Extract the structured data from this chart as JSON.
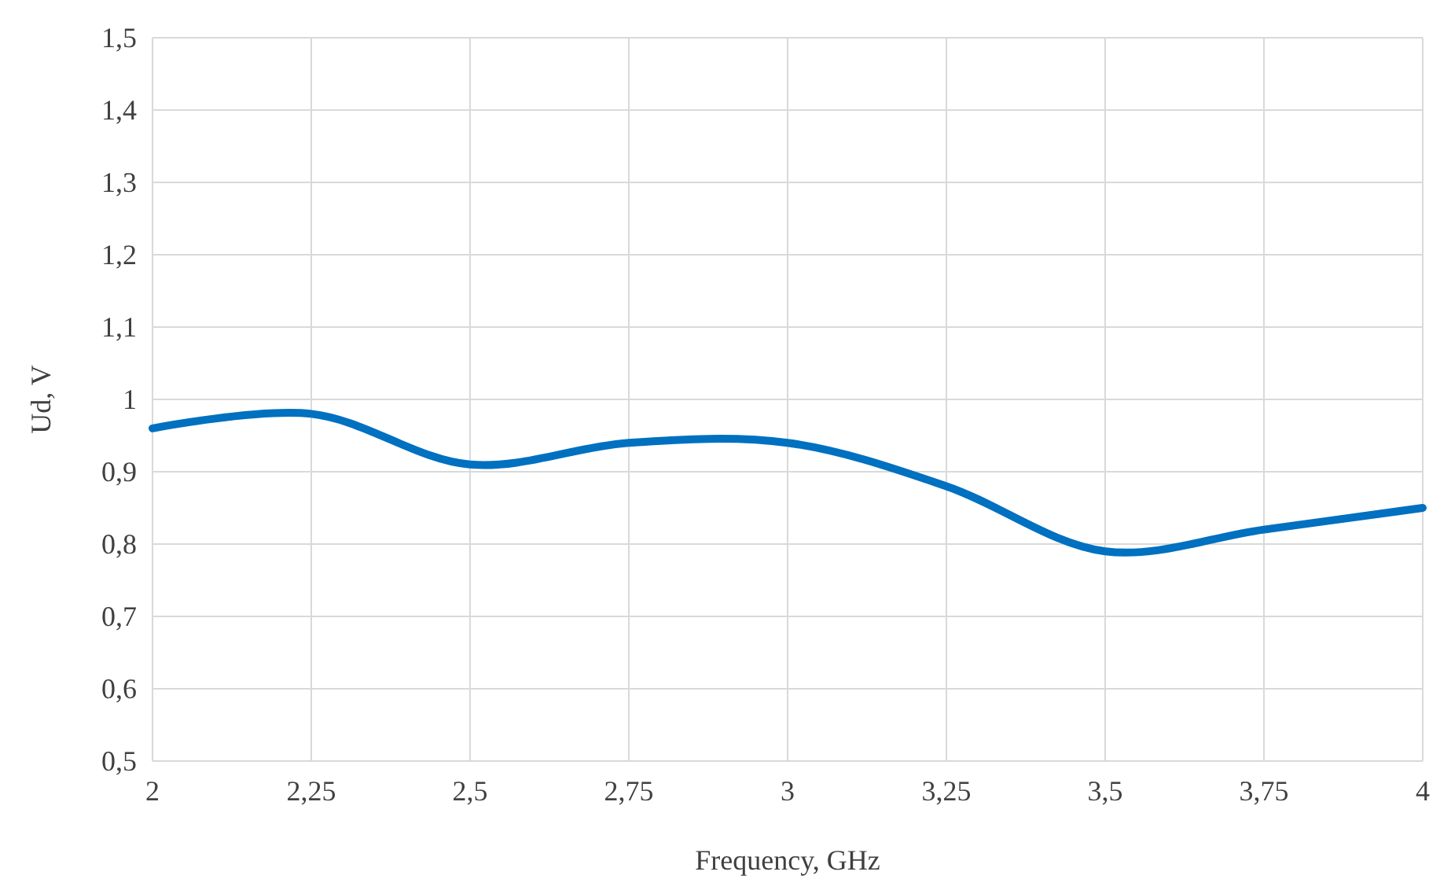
{
  "chart_data": {
    "type": "line",
    "xlabel": "Frequency, GHz",
    "ylabel": "Ud, V",
    "x": [
      2,
      2.25,
      2.5,
      2.75,
      3,
      3.25,
      3.5,
      3.75,
      4
    ],
    "series": [
      {
        "color": "#0070c0",
        "values": [
          0.96,
          0.98,
          0.91,
          0.94,
          0.94,
          0.88,
          0.79,
          0.82,
          0.85
        ]
      }
    ],
    "xlim": [
      2,
      4
    ],
    "xticks": [
      2,
      {
        "value": 2.25,
        "label": "2,25"
      },
      {
        "value": 2.5,
        "label": "2,5"
      },
      {
        "value": 2.75,
        "label": "2,75"
      },
      3,
      {
        "value": 3.25,
        "label": "3,25"
      },
      {
        "value": 3.5,
        "label": "3,5"
      },
      {
        "value": 3.75,
        "label": "3,75"
      },
      4
    ],
    "ylim": [
      0.5,
      1.5
    ],
    "yticks": [
      {
        "value": 0.5,
        "label": "0,5"
      },
      {
        "value": 0.6,
        "label": "0,6"
      },
      {
        "value": 0.7,
        "label": "0,7"
      },
      {
        "value": 0.8,
        "label": "0,8"
      },
      {
        "value": 0.9,
        "label": "0,9"
      },
      1,
      {
        "value": 1.1,
        "label": "1,1"
      },
      {
        "value": 1.2,
        "label": "1,2"
      },
      {
        "value": 1.3,
        "label": "1,3"
      },
      {
        "value": 1.4,
        "label": "1,4"
      },
      {
        "value": 1.5,
        "label": "1,5"
      }
    ],
    "grid": true
  }
}
